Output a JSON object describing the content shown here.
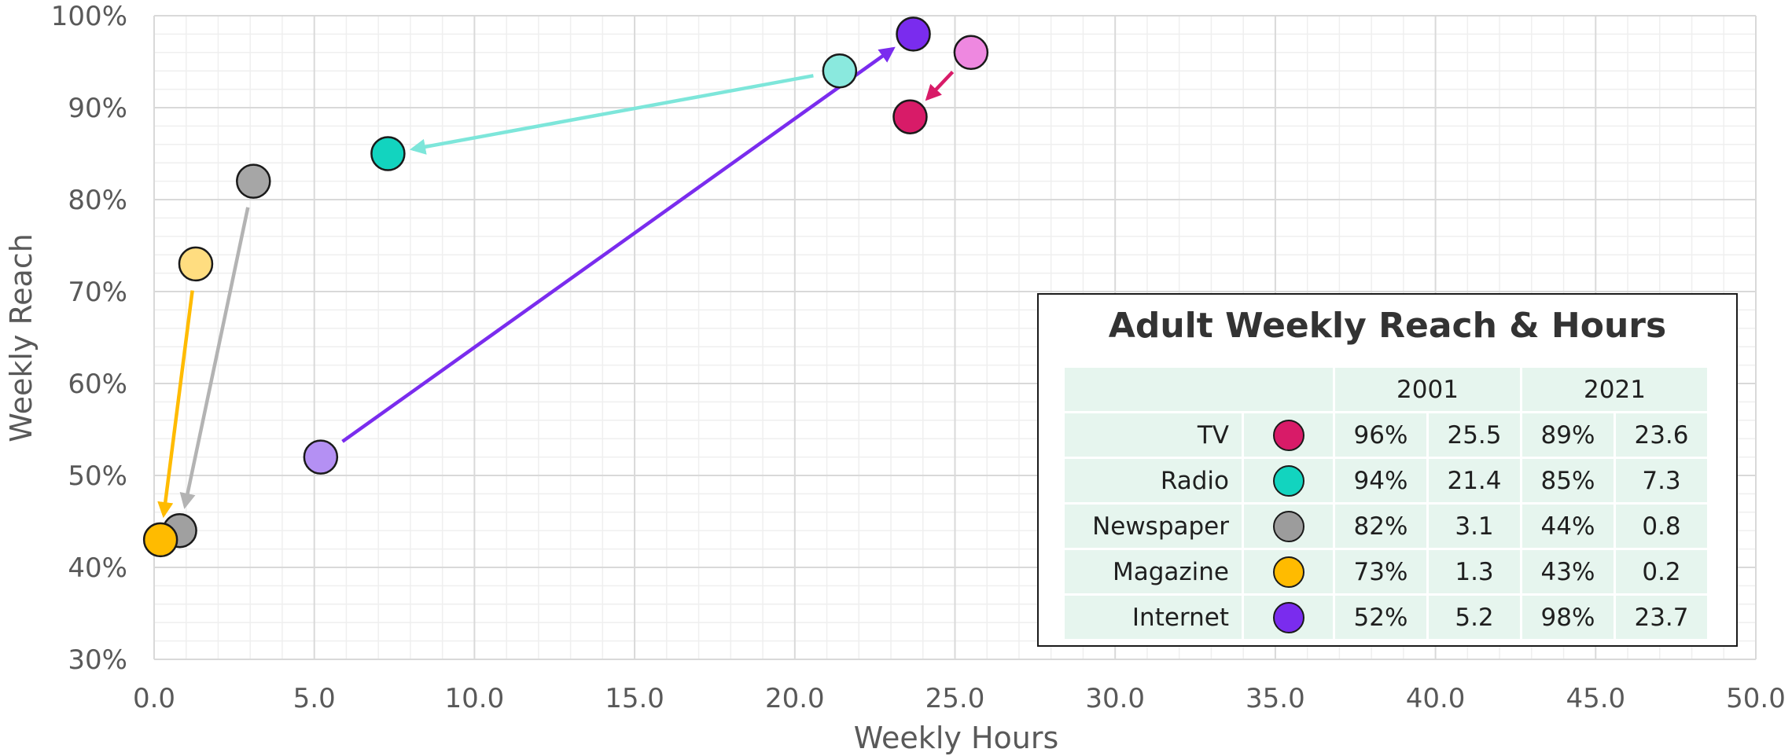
{
  "chart_data": {
    "type": "scatter",
    "xlabel": "Weekly Hours",
    "ylabel": "Weekly Reach",
    "xlim": [
      0,
      50
    ],
    "ylim": [
      30,
      100
    ],
    "x_ticks": [
      "0.0",
      "5.0",
      "10.0",
      "15.0",
      "20.0",
      "25.0",
      "30.0",
      "35.0",
      "40.0",
      "45.0",
      "50.0"
    ],
    "y_ticks": [
      "30%",
      "40%",
      "50%",
      "60%",
      "70%",
      "80%",
      "90%",
      "100%"
    ],
    "grid": true,
    "legend_position": "bottom-right",
    "series": [
      {
        "name": "TV",
        "color_2001": "#ee88e0",
        "color_2021": "#d81b68",
        "arrow_color": "#d81b68",
        "p2001": {
          "x": 25.5,
          "y": 96
        },
        "p2021": {
          "x": 23.6,
          "y": 89
        }
      },
      {
        "name": "Radio",
        "color_2001": "#8ae9de",
        "color_2021": "#12d4bf",
        "arrow_color": "#7de6da",
        "p2001": {
          "x": 21.4,
          "y": 94
        },
        "p2021": {
          "x": 7.3,
          "y": 85
        }
      },
      {
        "name": "Newspaper",
        "color_2001": "#a6a6a6",
        "color_2021": "#a0a0a0",
        "arrow_color": "#b3b3b3",
        "p2001": {
          "x": 3.1,
          "y": 82
        },
        "p2021": {
          "x": 0.8,
          "y": 44
        }
      },
      {
        "name": "Magazine",
        "color_2001": "#ffdd80",
        "color_2021": "#ffbb00",
        "arrow_color": "#ffbb00",
        "p2001": {
          "x": 1.3,
          "y": 73
        },
        "p2021": {
          "x": 0.2,
          "y": 43
        }
      },
      {
        "name": "Internet",
        "color_2001": "#b490f3",
        "color_2021": "#7a2cee",
        "arrow_color": "#7a2cee",
        "p2001": {
          "x": 5.2,
          "y": 52
        },
        "p2021": {
          "x": 23.7,
          "y": 98
        }
      }
    ]
  },
  "legend": {
    "title": "Adult Weekly Reach & Hours",
    "year_a": "2001",
    "year_b": "2021",
    "rows": [
      {
        "name": "TV",
        "color": "#d81b68",
        "reach_2001": "96%",
        "hours_2001": "25.5",
        "reach_2021": "89%",
        "hours_2021": "23.6"
      },
      {
        "name": "Radio",
        "color": "#12d4bf",
        "reach_2001": "94%",
        "hours_2001": "21.4",
        "reach_2021": "85%",
        "hours_2021": "7.3"
      },
      {
        "name": "Newspaper",
        "color": "#9c9c9c",
        "reach_2001": "82%",
        "hours_2001": "3.1",
        "reach_2021": "44%",
        "hours_2021": "0.8"
      },
      {
        "name": "Magazine",
        "color": "#ffbb00",
        "reach_2001": "73%",
        "hours_2001": "1.3",
        "reach_2021": "43%",
        "hours_2021": "0.2"
      },
      {
        "name": "Internet",
        "color": "#7a2cee",
        "reach_2001": "52%",
        "hours_2001": "5.2",
        "reach_2021": "98%",
        "hours_2021": "23.7"
      }
    ]
  }
}
